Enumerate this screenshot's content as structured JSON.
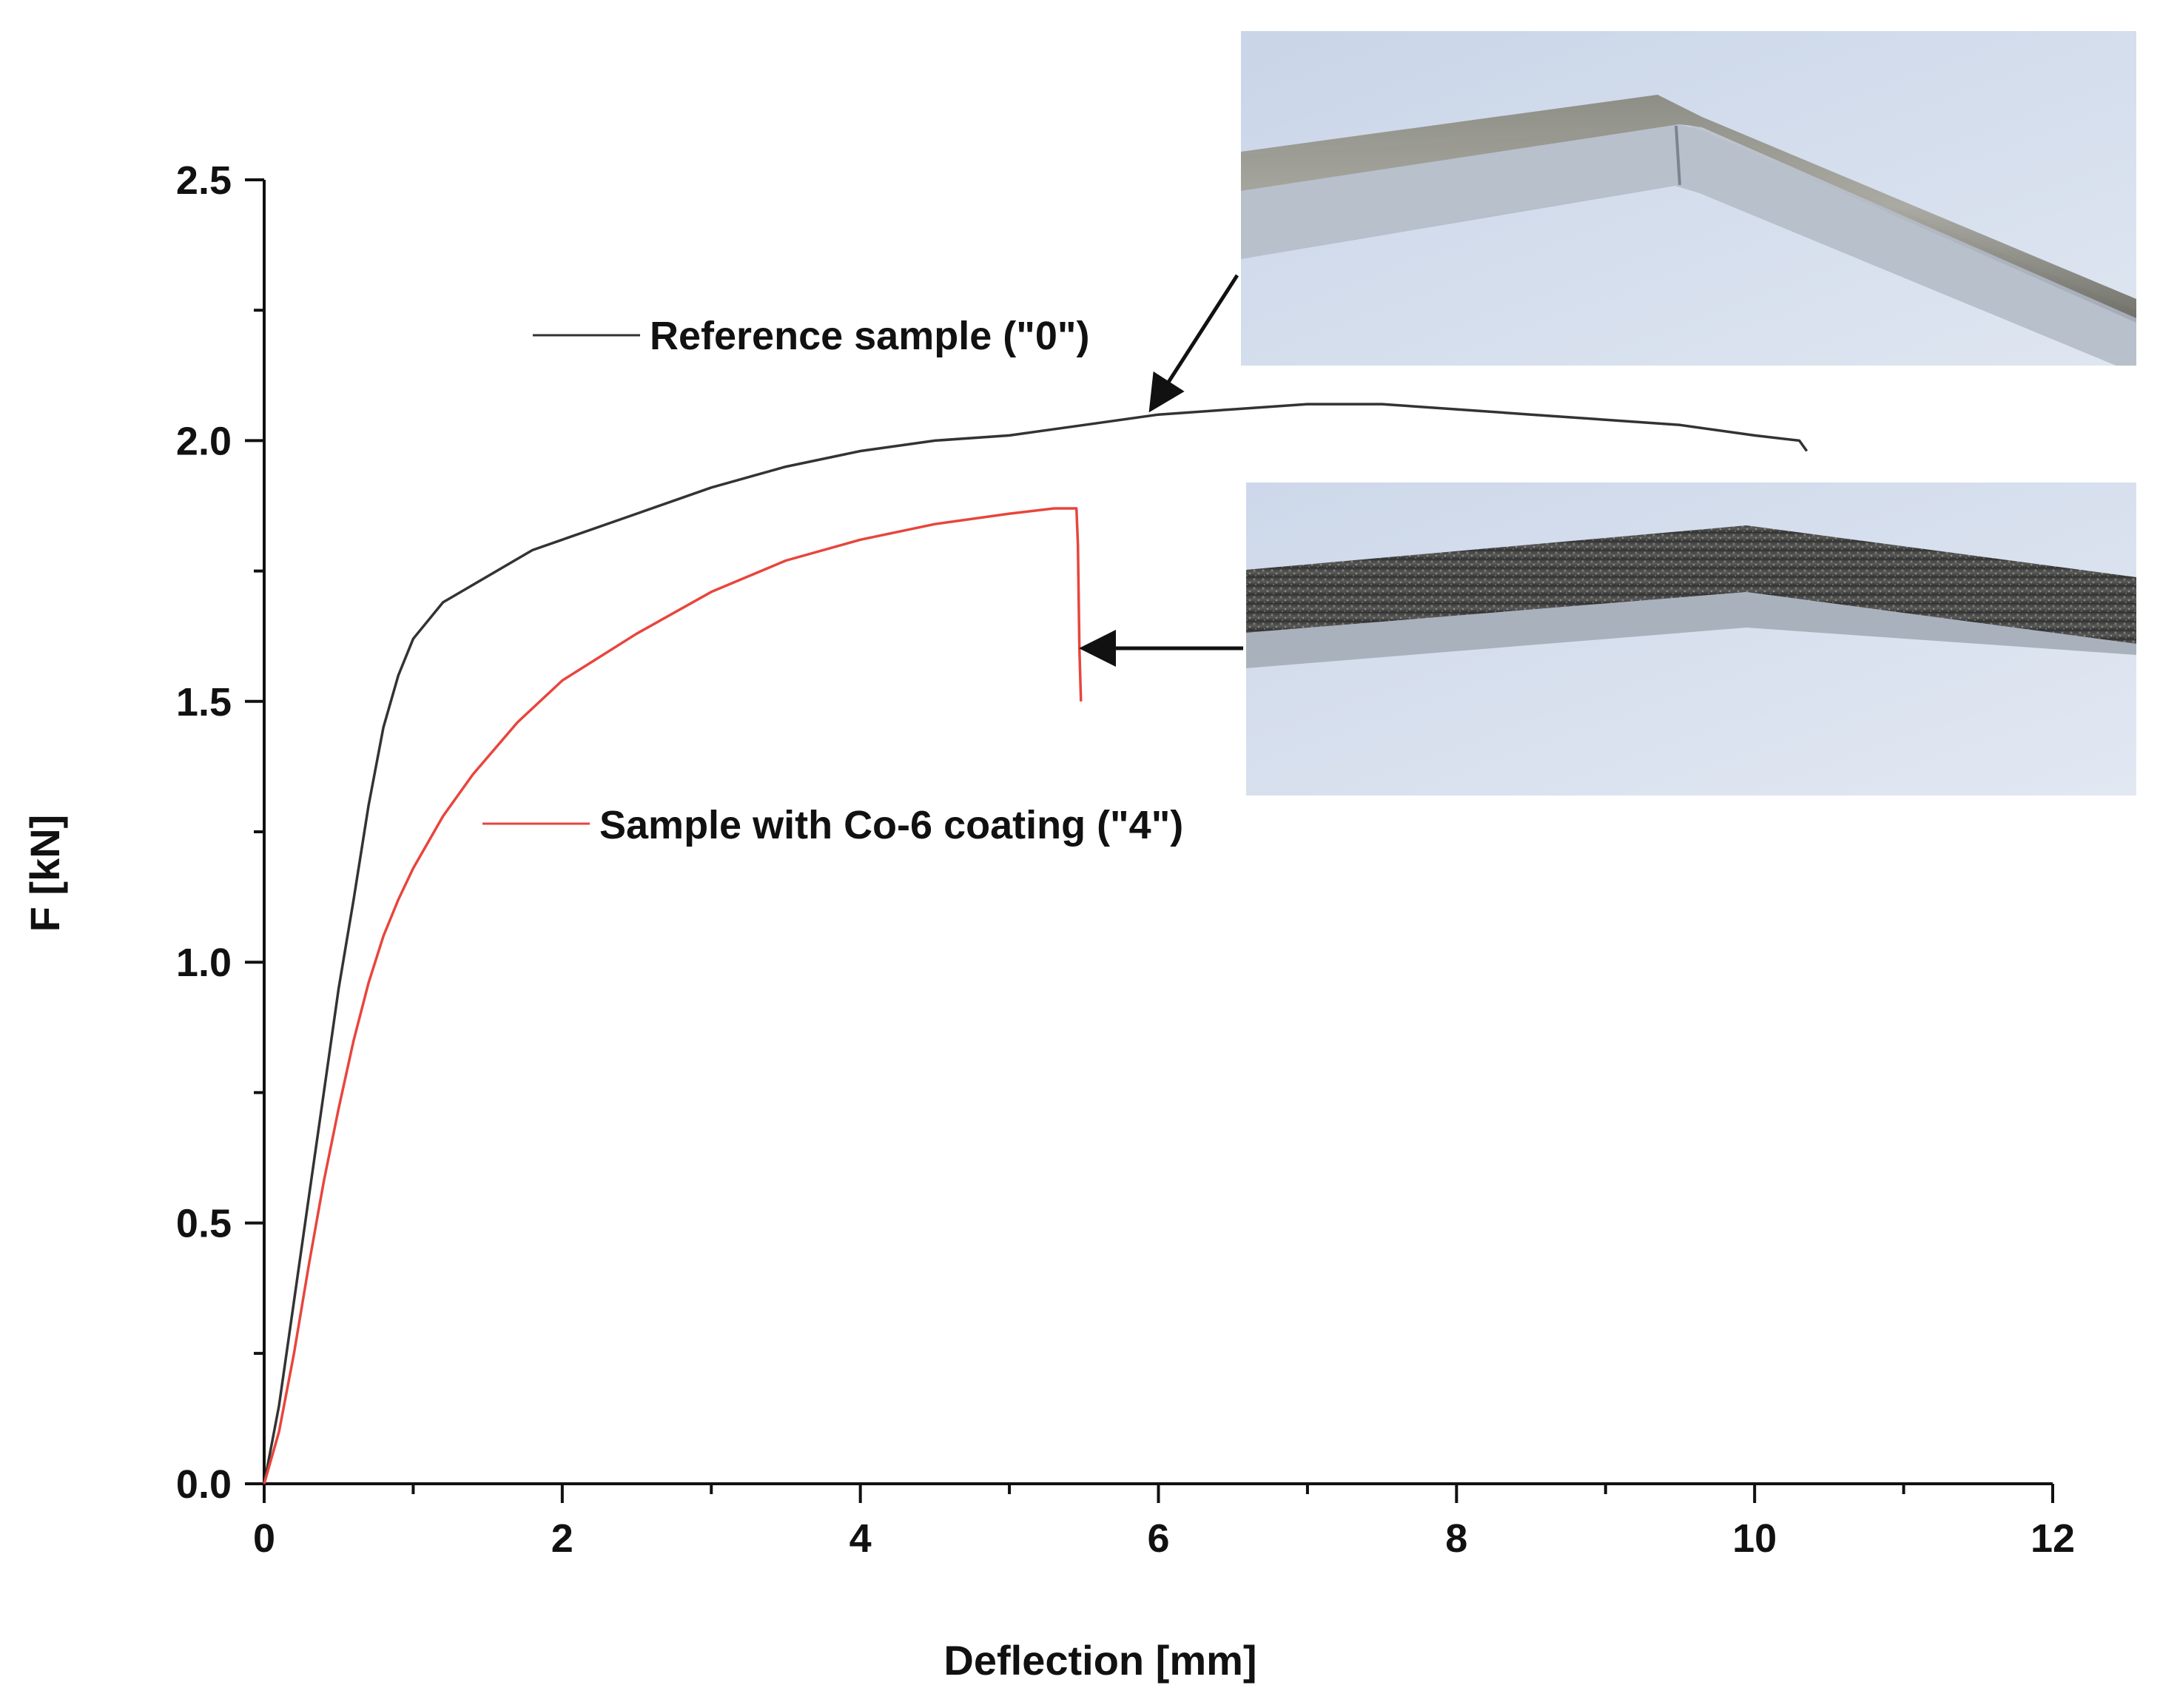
{
  "chart_data": {
    "type": "line",
    "title": "",
    "xlabel": "Deflection [mm]",
    "ylabel": "F [kN]",
    "xlim": [
      0,
      12
    ],
    "ylim": [
      0,
      2.5
    ],
    "xticks": [
      0,
      2,
      4,
      6,
      8,
      10,
      12
    ],
    "yticks": [
      0.0,
      0.5,
      1.0,
      1.5,
      2.0,
      2.5
    ],
    "xtick_labels": [
      "0",
      "2",
      "4",
      "6",
      "8",
      "10",
      "12"
    ],
    "ytick_labels": [
      "0.0",
      "0.5",
      "1.0",
      "1.5",
      "2.0",
      "2.5"
    ],
    "grid": false,
    "series": [
      {
        "name": "Reference sample (\"0\")",
        "color": "#333333",
        "x": [
          0,
          0.1,
          0.2,
          0.3,
          0.4,
          0.5,
          0.6,
          0.7,
          0.8,
          0.9,
          1.0,
          1.2,
          1.5,
          1.8,
          2.0,
          2.5,
          3.0,
          3.5,
          4.0,
          4.5,
          5.0,
          5.5,
          6.0,
          6.5,
          7.0,
          7.5,
          8.0,
          8.5,
          9.0,
          9.5,
          10.0,
          10.3,
          10.35
        ],
        "y": [
          0,
          0.15,
          0.35,
          0.55,
          0.75,
          0.95,
          1.12,
          1.3,
          1.45,
          1.55,
          1.62,
          1.69,
          1.74,
          1.79,
          1.81,
          1.86,
          1.91,
          1.95,
          1.98,
          2.0,
          2.01,
          2.03,
          2.05,
          2.06,
          2.07,
          2.07,
          2.06,
          2.05,
          2.04,
          2.03,
          2.01,
          2.0,
          1.98
        ]
      },
      {
        "name": "Sample with Co-6 coating (\"4\")",
        "color": "#e8453c",
        "x": [
          0,
          0.1,
          0.2,
          0.3,
          0.4,
          0.5,
          0.6,
          0.7,
          0.8,
          0.9,
          1.0,
          1.2,
          1.4,
          1.7,
          2.0,
          2.5,
          3.0,
          3.5,
          4.0,
          4.5,
          5.0,
          5.3,
          5.45,
          5.46,
          5.47,
          5.48
        ],
        "y": [
          0,
          0.1,
          0.25,
          0.42,
          0.58,
          0.72,
          0.85,
          0.96,
          1.05,
          1.12,
          1.18,
          1.28,
          1.36,
          1.46,
          1.54,
          1.63,
          1.71,
          1.77,
          1.81,
          1.84,
          1.86,
          1.87,
          1.87,
          1.8,
          1.6,
          1.5
        ]
      }
    ],
    "legend": [
      {
        "label": "Reference sample (\"0\")"
      },
      {
        "label": "Sample with Co-6 coating (\"4\")"
      }
    ]
  },
  "insets": [
    {
      "name": "reference-sample-photo"
    },
    {
      "name": "coated-sample-photo"
    }
  ]
}
